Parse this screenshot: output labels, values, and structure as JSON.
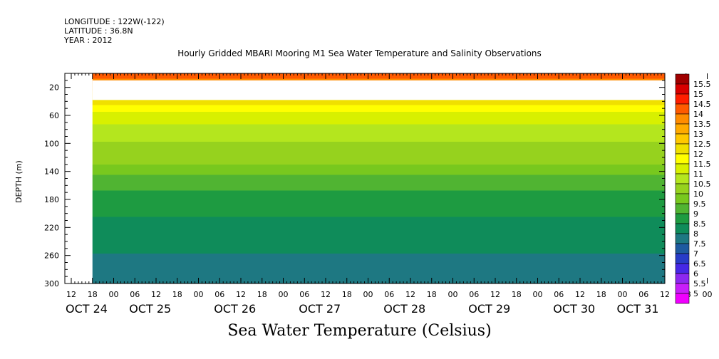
{
  "header": {
    "longitude": "LONGITUDE : 122W(-122)",
    "latitude": "LATITUDE : 36.8N",
    "year": "YEAR : 2012",
    "title": "Hourly Gridded MBARI Mooring M1 Sea Water Temperature and Salinity Observations"
  },
  "chart_data": {
    "type": "heatmap",
    "title": "Hourly Gridded MBARI Mooring M1 Sea Water Temperature and Salinity Observations",
    "xlabel": "",
    "ylabel": "DEPTH (m)",
    "bottom_label": "Sea Water Temperature (Celsius)",
    "y_ticks": [
      20,
      60,
      100,
      140,
      180,
      220,
      260,
      300
    ],
    "ylim": [
      0,
      300
    ],
    "y_inverted": true,
    "x_hour_ticks": [
      "12",
      "18",
      "00",
      "06",
      "12",
      "18",
      "00",
      "06",
      "12",
      "18",
      "00",
      "06",
      "12",
      "18",
      "00",
      "06",
      "12",
      "18",
      "00",
      "06",
      "12",
      "18",
      "00",
      "06",
      "12",
      "18",
      "00",
      "06",
      "12",
      "18",
      "00",
      "06"
    ],
    "x_day_labels": [
      "OCT 24",
      "OCT 25",
      "OCT 26",
      "OCT 27",
      "OCT 28",
      "OCT 29",
      "OCT 30",
      "OCT 31"
    ],
    "data_start": "OCT 24 18",
    "colorbar_levels": [
      "15.5",
      "15",
      "14.5",
      "14",
      "13.5",
      "13",
      "12.5",
      "12",
      "11.5",
      "11",
      "10.5",
      "10",
      "9.5",
      "9",
      "8.5",
      "8",
      "7.5",
      "7",
      "6.5",
      "6",
      "5.5",
      "5"
    ],
    "colorbar_colors": [
      "#a00000",
      "#d80000",
      "#ff1e00",
      "#ff5a00",
      "#ff8c00",
      "#ffaa00",
      "#ffc800",
      "#f0e000",
      "#ffff00",
      "#d8f000",
      "#b4e61e",
      "#96d21e",
      "#78c81e",
      "#50b432",
      "#1e9b41",
      "#0f8c5a",
      "#1e7882",
      "#1e5aa0",
      "#283cc8",
      "#4628e6",
      "#8c28f0",
      "#c81efa",
      "#f000ff"
    ],
    "depth_profile": [
      {
        "depth": 5,
        "temp": 14.0
      },
      {
        "depth": 40,
        "temp": 12.2
      },
      {
        "depth": 50,
        "temp": 11.6
      },
      {
        "depth": 65,
        "temp": 11.1
      },
      {
        "depth": 90,
        "temp": 10.6
      },
      {
        "depth": 125,
        "temp": 10.1
      },
      {
        "depth": 150,
        "temp": 9.3
      },
      {
        "depth": 190,
        "temp": 8.6
      },
      {
        "depth": 230,
        "temp": 8.3
      },
      {
        "depth": 265,
        "temp": 7.9
      },
      {
        "depth": 300,
        "temp": 7.6
      }
    ],
    "missing_depth_range": [
      10,
      38
    ]
  }
}
